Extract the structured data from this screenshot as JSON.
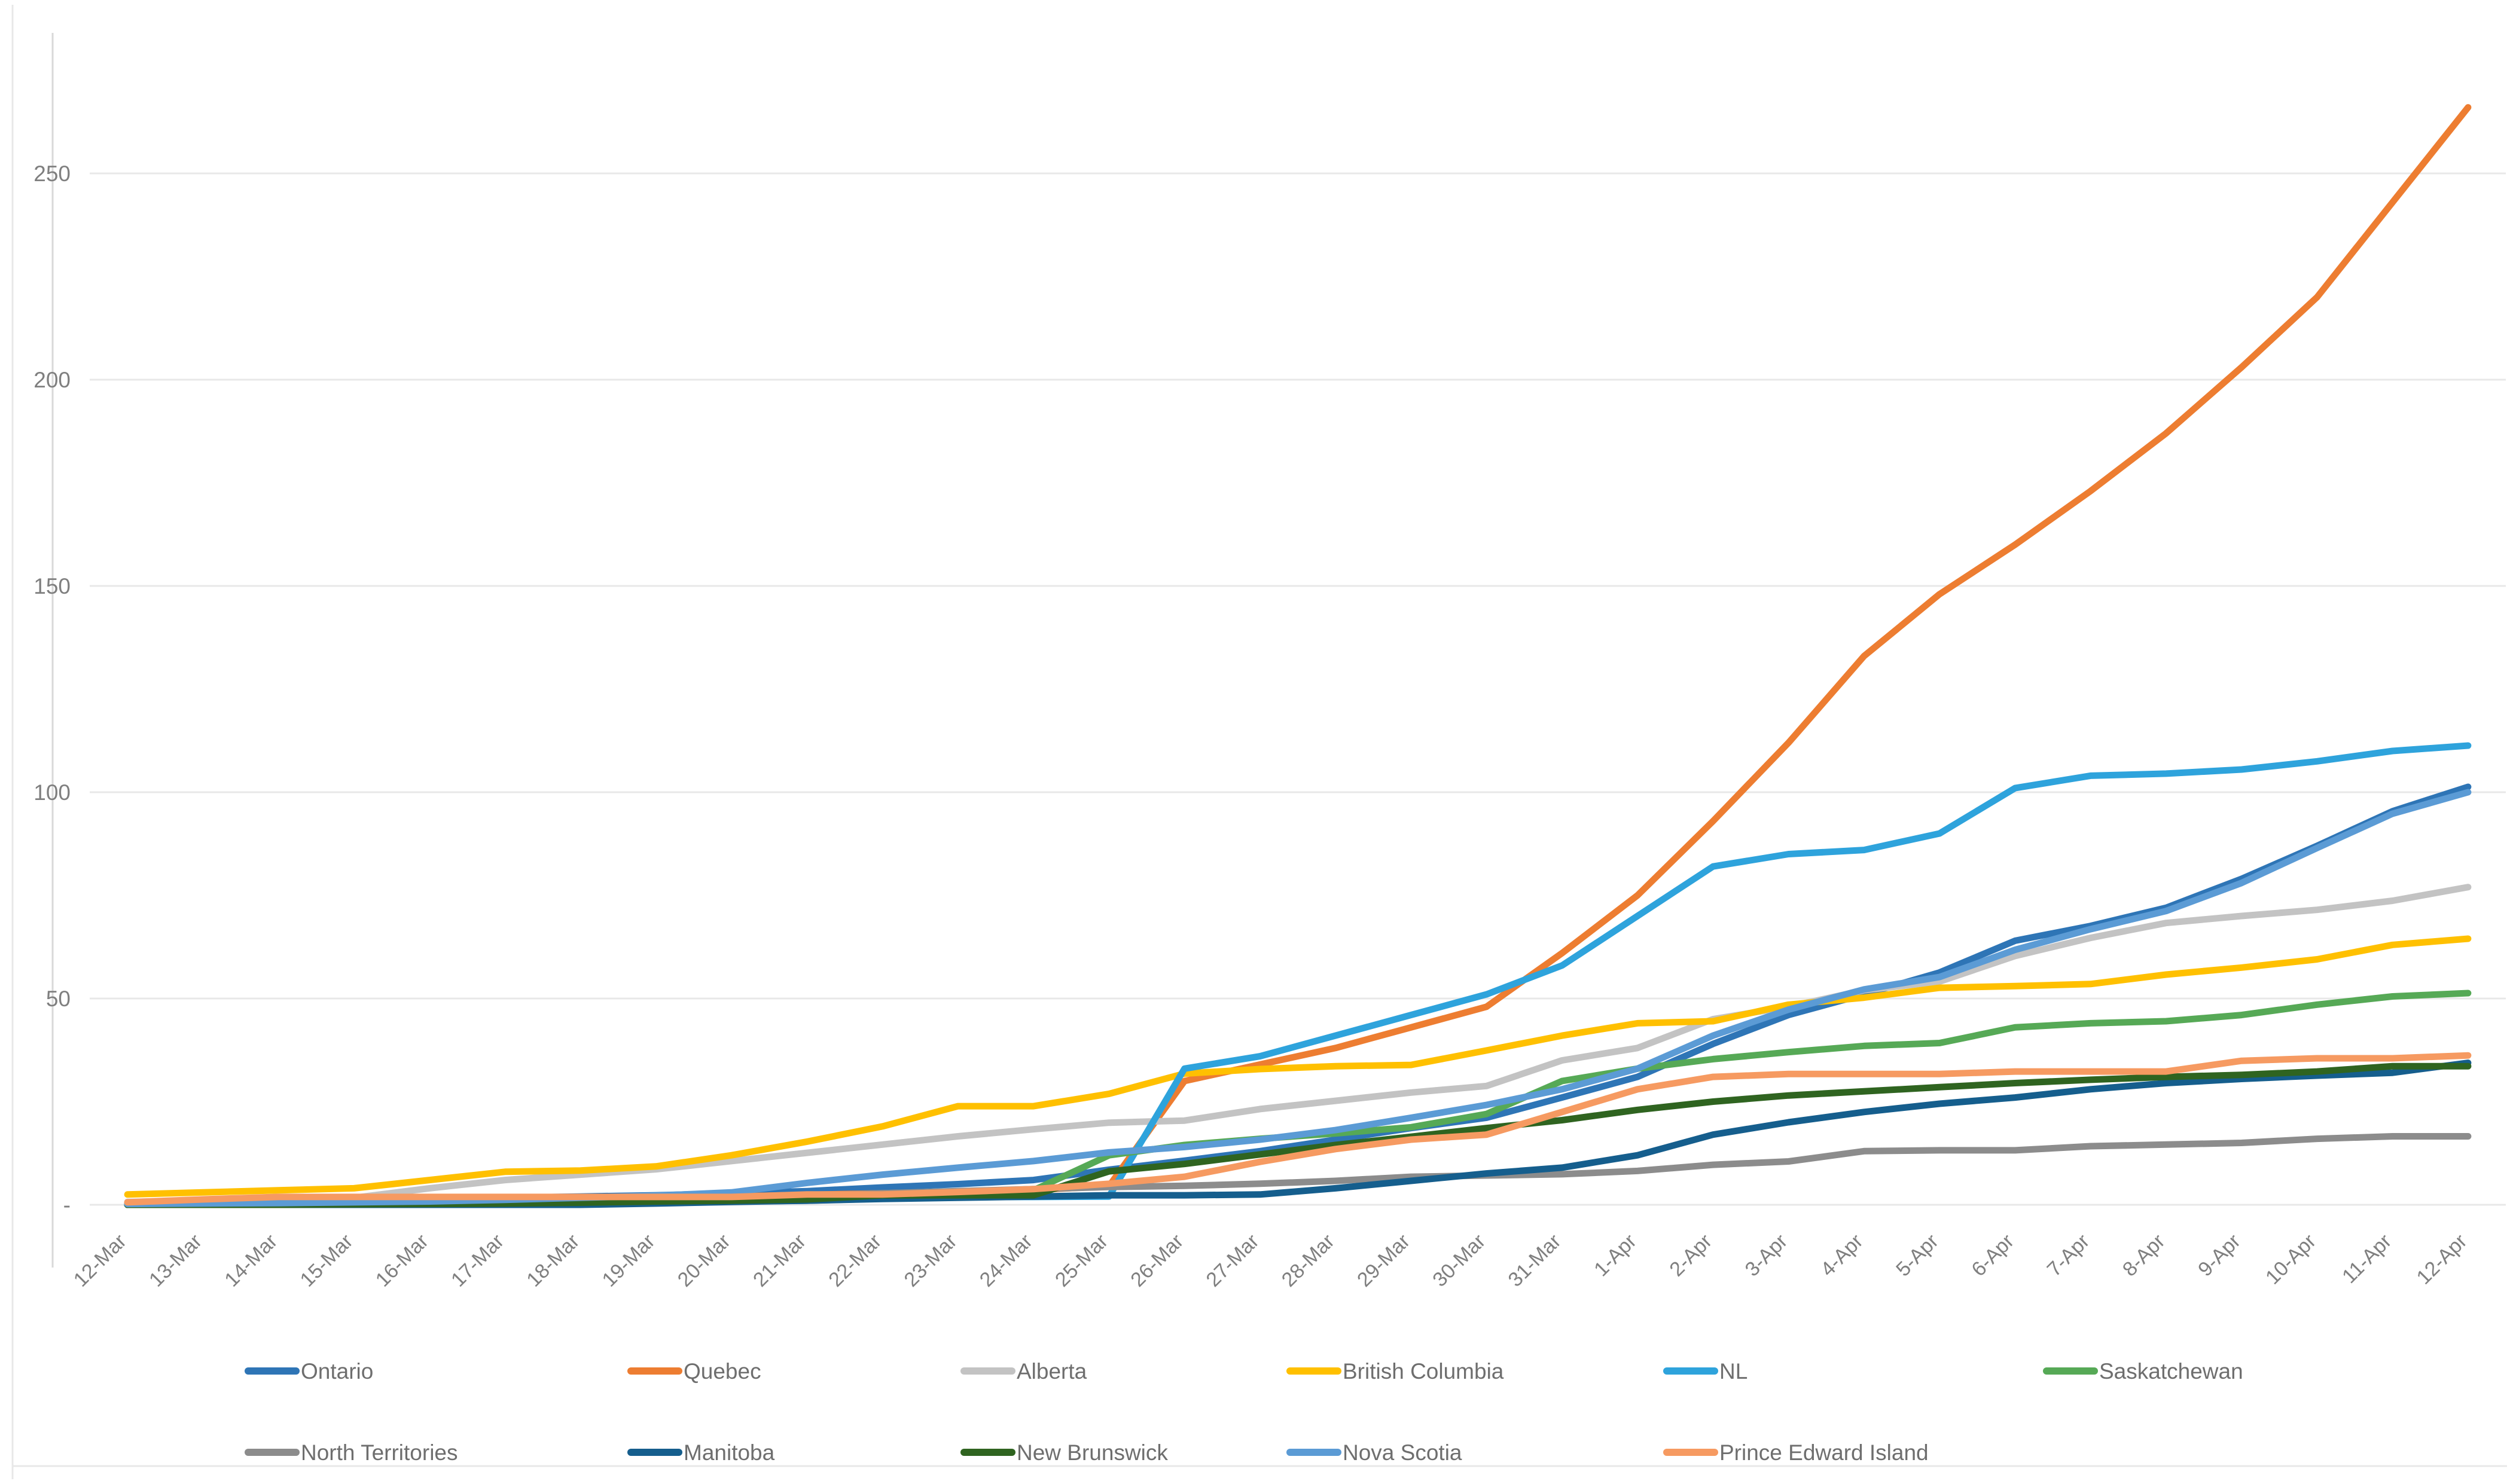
{
  "chart_data": {
    "type": "line",
    "title": "",
    "xlabel": "",
    "ylabel": "",
    "grid": true,
    "legend_position": "bottom",
    "y_axis": {
      "min": 0,
      "max": 276,
      "tick_values": [
        0,
        50,
        100,
        150,
        200,
        250
      ],
      "tick_labels": [
        "-",
        "50",
        "100",
        "150",
        "200",
        "250"
      ]
    },
    "x_axis": {
      "label_rotation": -45
    },
    "categories": [
      "12-Mar",
      "13-Mar",
      "14-Mar",
      "15-Mar",
      "16-Mar",
      "17-Mar",
      "18-Mar",
      "19-Mar",
      "20-Mar",
      "21-Mar",
      "22-Mar",
      "23-Mar",
      "24-Mar",
      "25-Mar",
      "26-Mar",
      "27-Mar",
      "28-Mar",
      "29-Mar",
      "30-Mar",
      "31-Mar",
      "1-Apr",
      "2-Apr",
      "3-Apr",
      "4-Apr",
      "5-Apr",
      "6-Apr",
      "7-Apr",
      "8-Apr",
      "9-Apr",
      "10-Apr",
      "11-Apr",
      "12-Apr"
    ],
    "series": [
      {
        "name": "Ontario",
        "color": "#2E75B6",
        "values": [
          0.3,
          0.4,
          0.5,
          0.7,
          1,
          1.7,
          2,
          2.3,
          2.8,
          3.3,
          4.2,
          5,
          6,
          8.5,
          10.7,
          13,
          15.8,
          18.6,
          21.1,
          26,
          31,
          39,
          46,
          51,
          56.3,
          64,
          67.6,
          72,
          79,
          87,
          95.4,
          101.3
        ]
      },
      {
        "name": "Quebec",
        "color": "#ED7D31",
        "values": [
          0.5,
          0.6,
          0.8,
          1,
          1,
          1.2,
          1.5,
          1.8,
          2,
          2.4,
          2.8,
          3.2,
          3.6,
          4.5,
          30,
          34,
          38,
          43,
          48,
          61,
          75,
          93,
          112,
          133,
          148,
          160,
          173,
          187,
          203,
          220,
          243,
          266
        ]
      },
      {
        "name": "Alberta",
        "color": "#C3C3C3",
        "values": [
          0.7,
          1,
          1.4,
          1.7,
          4,
          6,
          7.3,
          8.6,
          10.6,
          12.6,
          14.6,
          16.6,
          18.3,
          19.9,
          20.4,
          23.2,
          25.2,
          27.2,
          28.8,
          35,
          38,
          45,
          48,
          52,
          54.1,
          60.3,
          64.7,
          68.3,
          70,
          71.5,
          73.7,
          77
        ]
      },
      {
        "name": "British Columbia",
        "color": "#FFC000",
        "values": [
          2.5,
          3,
          3.5,
          4,
          6,
          8,
          8.3,
          9.3,
          12,
          15.3,
          19,
          23.9,
          23.9,
          26.9,
          31.8,
          32.9,
          33.6,
          33.9,
          37.4,
          41,
          44,
          44.5,
          48.5,
          50.2,
          52.6,
          53,
          53.5,
          55.8,
          57.5,
          59.5,
          63,
          64.5
        ]
      },
      {
        "name": "NL",
        "color": "#2EA3DC",
        "values": [
          0,
          0,
          0,
          0,
          0.2,
          0.2,
          0.4,
          0.6,
          0.8,
          1,
          1.5,
          1.9,
          1.9,
          2,
          33,
          36,
          41,
          46,
          51,
          58,
          70,
          82,
          85,
          86,
          90,
          101,
          104,
          104.5,
          105.5,
          107.5,
          110,
          111.3
        ]
      },
      {
        "name": "Saskatchewan",
        "color": "#56A956",
        "values": [
          0,
          0,
          0,
          0.2,
          0.3,
          0.5,
          0.8,
          1,
          1.4,
          2,
          2.5,
          3.2,
          3.5,
          12,
          14.5,
          16,
          17.3,
          18.8,
          22,
          30,
          33,
          35.3,
          37,
          38.5,
          39.2,
          43,
          44,
          44.5,
          46,
          48.5,
          50.5,
          51.3
        ]
      },
      {
        "name": "North Territories",
        "color": "#8C8C8C",
        "values": [
          0,
          0,
          0,
          0,
          0,
          0,
          0.3,
          0.6,
          1.5,
          2.2,
          2.8,
          3.3,
          3.8,
          4.3,
          4.6,
          5.1,
          5.8,
          6.8,
          7.1,
          7.4,
          8.2,
          9.7,
          10.5,
          13,
          13.2,
          13.2,
          14.2,
          14.6,
          15,
          16,
          16.6,
          16.6
        ]
      },
      {
        "name": "Manitoba",
        "color": "#155E8D",
        "values": [
          0,
          0,
          0,
          0,
          0,
          0,
          0,
          0.3,
          0.7,
          1,
          1.4,
          1.7,
          2,
          2.3,
          2.3,
          2.5,
          4,
          5.8,
          7.6,
          9,
          12,
          17,
          20,
          22.5,
          24.5,
          26,
          28,
          29.5,
          30.5,
          31.3,
          32,
          34.4
        ]
      },
      {
        "name": "New Brunswick",
        "color": "#2F6420",
        "values": [
          0,
          0,
          0,
          0.1,
          0.2,
          0.3,
          0.5,
          0.8,
          1,
          1.3,
          2.3,
          2.3,
          2.3,
          8.1,
          9.9,
          12.2,
          14.5,
          16.5,
          18.6,
          20.5,
          23,
          25,
          26.5,
          27.5,
          28.5,
          29.5,
          30.3,
          31,
          31.5,
          32.3,
          33.6,
          33.6
        ]
      },
      {
        "name": "Nova Scotia",
        "color": "#5B9BD5",
        "values": [
          0.2,
          0.3,
          0.4,
          0.6,
          0.8,
          1.2,
          1.7,
          2.2,
          3,
          5.3,
          7.3,
          9,
          10.6,
          12.7,
          14,
          15.8,
          18.1,
          21.1,
          24.2,
          28,
          33,
          41,
          47.3,
          52.2,
          55.2,
          61.8,
          66.8,
          71.2,
          78,
          86.5,
          94.8,
          100
        ]
      },
      {
        "name": "Prince Edward Island",
        "color": "#F69A61",
        "values": [
          0.6,
          1.3,
          1.9,
          1.9,
          1.9,
          1.9,
          1.9,
          1.9,
          1.9,
          2.5,
          2.5,
          3.1,
          3.8,
          5.1,
          6.8,
          10.4,
          13.5,
          15.8,
          17,
          22.5,
          28,
          31,
          31.7,
          31.7,
          31.7,
          32.3,
          32.3,
          32.3,
          34.9,
          35.5,
          35.5,
          36.2
        ]
      }
    ],
    "legend_rows": [
      [
        "Ontario",
        "Quebec",
        "Alberta",
        "British Columbia",
        "NL",
        "Saskatchewan"
      ],
      [
        "North Territories",
        "Manitoba",
        "New Brunswick",
        "Nova Scotia",
        "Prince Edward Island"
      ]
    ]
  },
  "layout_colors": {
    "gridline": "#E8E8E8",
    "axis_line": "#D9D9D9",
    "tick_text": "#7f7f7f",
    "legend_text": "#6e6e6e",
    "background": "#ffffff"
  }
}
